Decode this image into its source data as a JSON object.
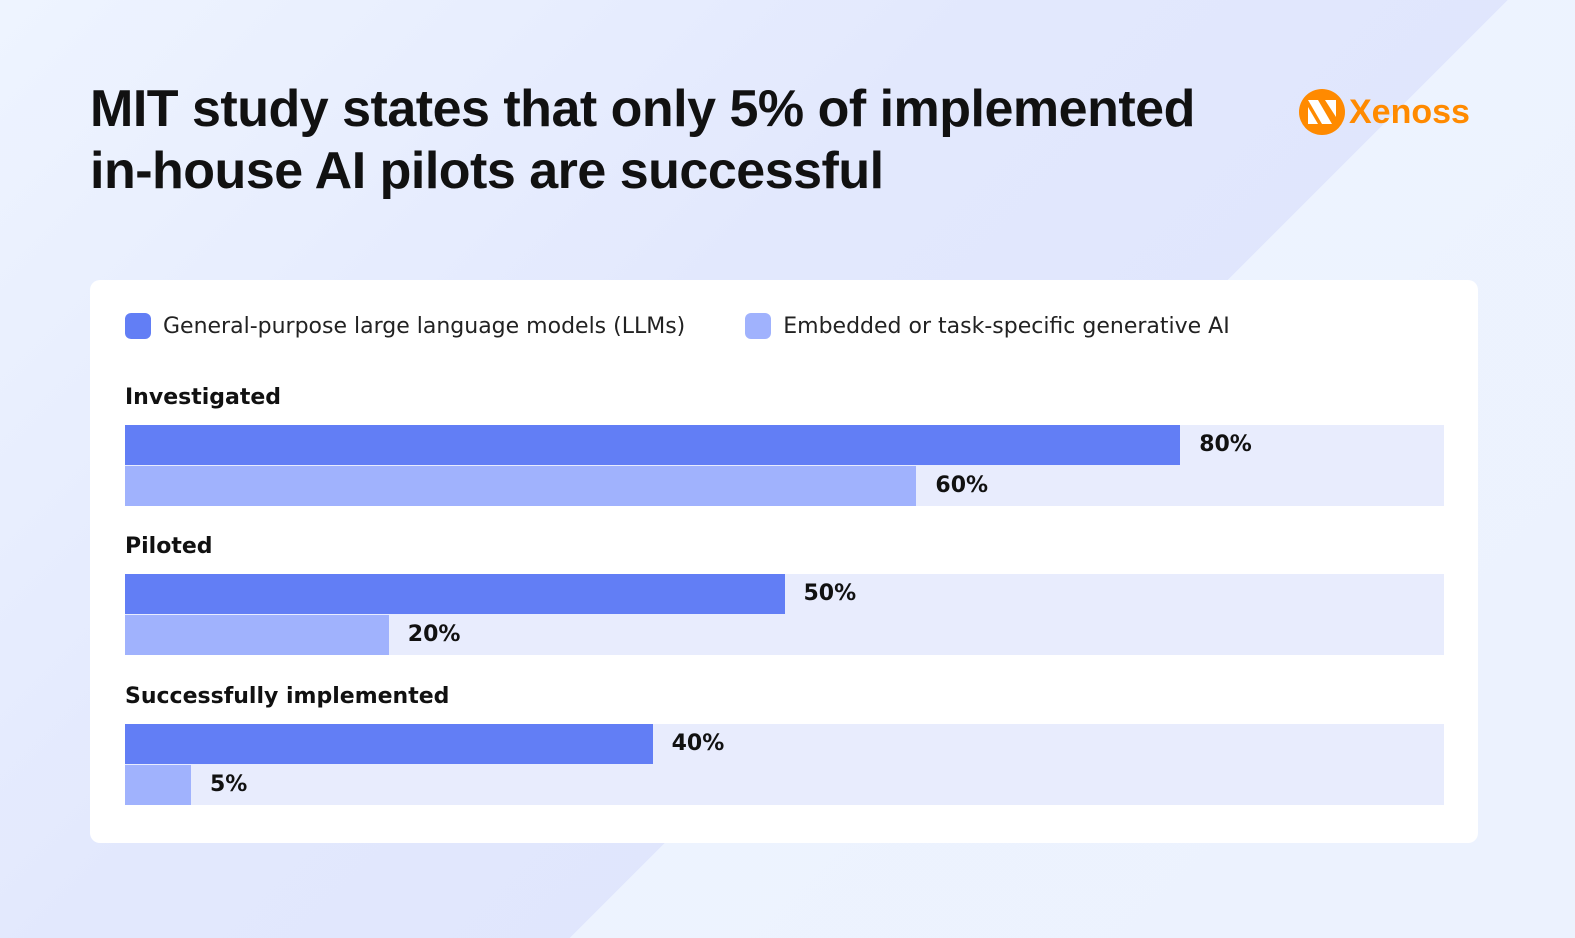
{
  "title_line1": "MIT study states that only 5% of implemented",
  "title_line2": "in-house AI pilots are successful",
  "logo": "Xenoss",
  "colors": {
    "llm": "#627ef5",
    "embedded": "#a0b2fd",
    "track": "#e8ecfd",
    "brand": "#ff8a00"
  },
  "chart_data": {
    "type": "bar",
    "orientation": "horizontal",
    "xlim": [
      0,
      100
    ],
    "legend_placement": "top-left",
    "categories": [
      "Investigated",
      "Piloted",
      "Successfully implemented"
    ],
    "series": [
      {
        "name": "General-purpose large language models (LLMs)",
        "values": [
          80,
          50,
          40
        ],
        "labels": [
          "80%",
          "50%",
          "40%"
        ]
      },
      {
        "name": "Embedded or task-specific generative AI",
        "values": [
          60,
          20,
          5
        ],
        "labels": [
          "60%",
          "20%",
          "5%"
        ]
      }
    ]
  }
}
